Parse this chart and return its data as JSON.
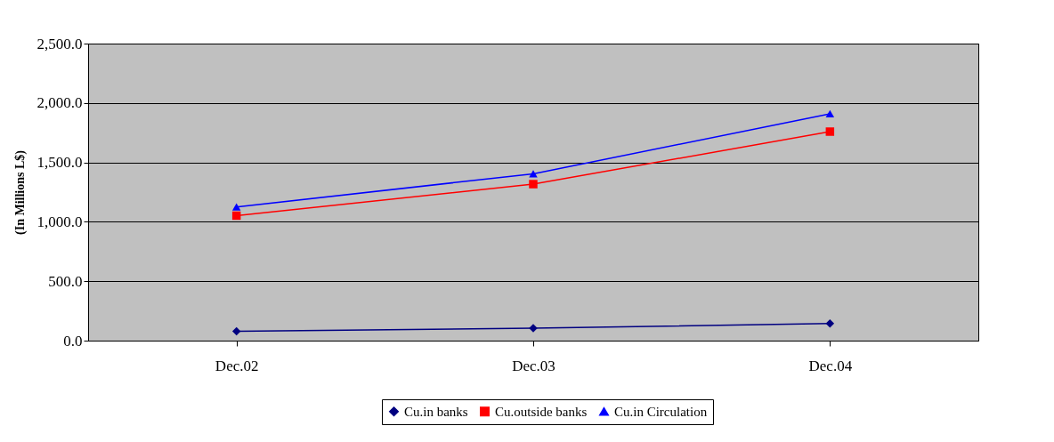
{
  "chart_data": {
    "type": "line",
    "ylabel": "(In Millions L$)",
    "categories": [
      "Dec.02",
      "Dec.03",
      "Dec.04"
    ],
    "series": [
      {
        "name": "Cu.in banks",
        "color": "#000080",
        "marker": "diamond",
        "values": [
          79,
          105,
          144
        ]
      },
      {
        "name": "Cu.outside banks",
        "color": "#ff0000",
        "marker": "square",
        "values": [
          1052,
          1317,
          1759
        ]
      },
      {
        "name": "Cu.in Circulation",
        "color": "#0000ff",
        "marker": "triangle",
        "values": [
          1125,
          1404,
          1909
        ]
      }
    ],
    "ylim": [
      0,
      2500
    ],
    "yticks": [
      {
        "value": 0,
        "label": "0.0"
      },
      {
        "value": 500,
        "label": "500.0"
      },
      {
        "value": 1000,
        "label": "1,000.0"
      },
      {
        "value": 1500,
        "label": "1,500.0"
      },
      {
        "value": 2000,
        "label": "2,000.0"
      },
      {
        "value": 2500,
        "label": "2,500.0"
      }
    ],
    "grid": "y",
    "legend": "bottom",
    "line_style": "solid"
  }
}
